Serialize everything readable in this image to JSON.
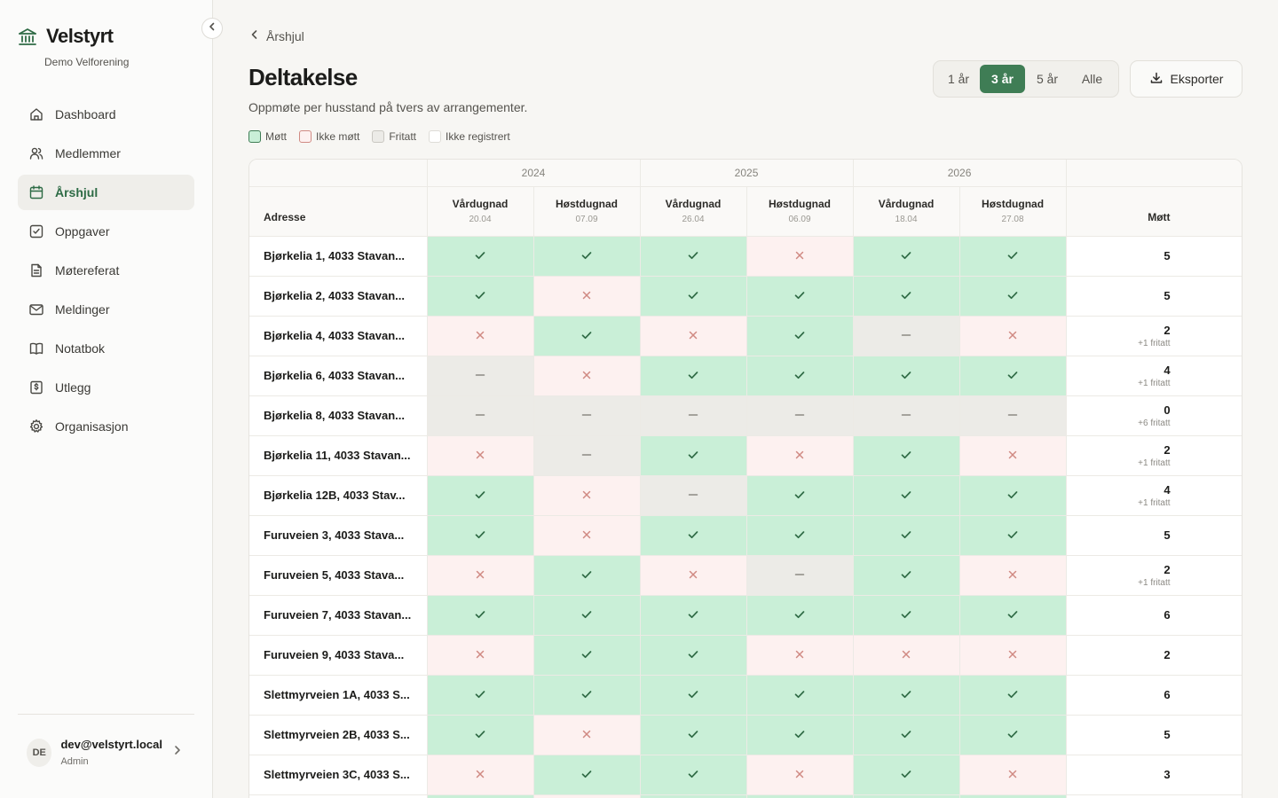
{
  "sidebar": {
    "brand_name": "Velstyrt",
    "org_name": "Demo Velforening",
    "items": [
      {
        "label": "Dashboard",
        "icon": "home-icon",
        "active": false
      },
      {
        "label": "Medlemmer",
        "icon": "users-icon",
        "active": false
      },
      {
        "label": "Årshjul",
        "icon": "calendar-icon",
        "active": true
      },
      {
        "label": "Oppgaver",
        "icon": "checkbox-icon",
        "active": false
      },
      {
        "label": "Møtereferat",
        "icon": "document-icon",
        "active": false
      },
      {
        "label": "Meldinger",
        "icon": "mail-icon",
        "active": false
      },
      {
        "label": "Notatbok",
        "icon": "book-icon",
        "active": false
      },
      {
        "label": "Utlegg",
        "icon": "receipt-icon",
        "active": false
      },
      {
        "label": "Organisasjon",
        "icon": "gear-icon",
        "active": false
      }
    ],
    "user": {
      "initials": "DE",
      "email": "dev@velstyrt.local",
      "role": "Admin"
    }
  },
  "header": {
    "breadcrumb": "Årshjul",
    "title": "Deltakelse",
    "subtitle": "Oppmøte per husstand på tvers av arrangementer.",
    "export_label": "Eksporter",
    "ranges": [
      {
        "label": "1 år",
        "active": false
      },
      {
        "label": "3 år",
        "active": true
      },
      {
        "label": "5 år",
        "active": false
      },
      {
        "label": "Alle",
        "active": false
      }
    ]
  },
  "legend": [
    {
      "label": "Møtt",
      "status": "m"
    },
    {
      "label": "Ikke møtt",
      "status": "i"
    },
    {
      "label": "Fritatt",
      "status": "f"
    },
    {
      "label": "Ikke registrert",
      "status": "n"
    }
  ],
  "colors": {
    "accent": "#3f7d55",
    "attended_bg": "#c9efd7",
    "attended_mark": "#2f6b45",
    "absent_bg": "#fdf1f0",
    "absent_mark": "#d08a83",
    "exempt_bg": "#ecebe7",
    "exempt_mark": "#8c8a84"
  },
  "table": {
    "address_header": "Adresse",
    "total_header": "Møtt",
    "years": [
      "2024",
      "2025",
      "2026"
    ],
    "events": [
      {
        "name": "Vårdugnad",
        "date": "20.04"
      },
      {
        "name": "Høstdugnad",
        "date": "07.09"
      },
      {
        "name": "Vårdugnad",
        "date": "26.04"
      },
      {
        "name": "Høstdugnad",
        "date": "06.09"
      },
      {
        "name": "Vårdugnad",
        "date": "18.04"
      },
      {
        "name": "Høstdugnad",
        "date": "27.08"
      }
    ],
    "rows": [
      {
        "address": "Bjørkelia 1, 4033 Stavan...",
        "statuses": [
          "m",
          "m",
          "m",
          "i",
          "m",
          "m"
        ],
        "total": "5",
        "extra": ""
      },
      {
        "address": "Bjørkelia 2, 4033 Stavan...",
        "statuses": [
          "m",
          "i",
          "m",
          "m",
          "m",
          "m"
        ],
        "total": "5",
        "extra": ""
      },
      {
        "address": "Bjørkelia 4, 4033 Stavan...",
        "statuses": [
          "i",
          "m",
          "i",
          "m",
          "f",
          "i"
        ],
        "total": "2",
        "extra": "+1 fritatt"
      },
      {
        "address": "Bjørkelia 6, 4033 Stavan...",
        "statuses": [
          "f",
          "i",
          "m",
          "m",
          "m",
          "m"
        ],
        "total": "4",
        "extra": "+1 fritatt"
      },
      {
        "address": "Bjørkelia 8, 4033 Stavan...",
        "statuses": [
          "f",
          "f",
          "f",
          "f",
          "f",
          "f"
        ],
        "total": "0",
        "extra": "+6 fritatt"
      },
      {
        "address": "Bjørkelia 11, 4033 Stavan...",
        "statuses": [
          "i",
          "f",
          "m",
          "i",
          "m",
          "i"
        ],
        "total": "2",
        "extra": "+1 fritatt"
      },
      {
        "address": "Bjørkelia 12B, 4033 Stav...",
        "statuses": [
          "m",
          "i",
          "f",
          "m",
          "m",
          "m"
        ],
        "total": "4",
        "extra": "+1 fritatt"
      },
      {
        "address": "Furuveien 3, 4033 Stava...",
        "statuses": [
          "m",
          "i",
          "m",
          "m",
          "m",
          "m"
        ],
        "total": "5",
        "extra": ""
      },
      {
        "address": "Furuveien 5, 4033 Stava...",
        "statuses": [
          "i",
          "m",
          "i",
          "f",
          "m",
          "i"
        ],
        "total": "2",
        "extra": "+1 fritatt"
      },
      {
        "address": "Furuveien 7, 4033 Stavan...",
        "statuses": [
          "m",
          "m",
          "m",
          "m",
          "m",
          "m"
        ],
        "total": "6",
        "extra": ""
      },
      {
        "address": "Furuveien 9, 4033 Stava...",
        "statuses": [
          "i",
          "m",
          "m",
          "i",
          "i",
          "i"
        ],
        "total": "2",
        "extra": ""
      },
      {
        "address": "Slettmyrveien 1A, 4033 S...",
        "statuses": [
          "m",
          "m",
          "m",
          "m",
          "m",
          "m"
        ],
        "total": "6",
        "extra": ""
      },
      {
        "address": "Slettmyrveien 2B, 4033 S...",
        "statuses": [
          "m",
          "i",
          "m",
          "m",
          "m",
          "m"
        ],
        "total": "5",
        "extra": ""
      },
      {
        "address": "Slettmyrveien 3C, 4033 S...",
        "statuses": [
          "i",
          "m",
          "m",
          "i",
          "m",
          "i"
        ],
        "total": "3",
        "extra": ""
      },
      {
        "address": "",
        "statuses": [
          "m",
          "i",
          "m",
          "m",
          "m",
          "m"
        ],
        "total": "",
        "extra": ""
      }
    ]
  }
}
